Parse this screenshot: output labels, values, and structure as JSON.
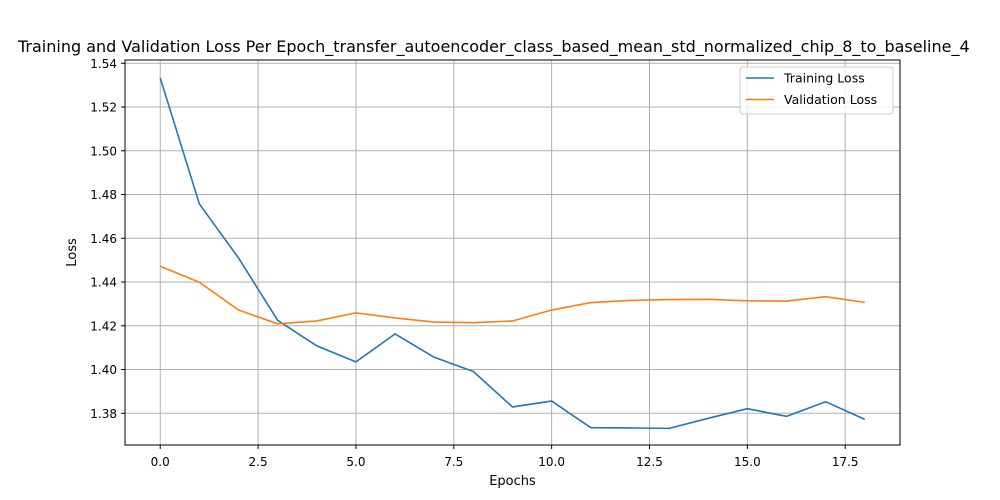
{
  "chart_data": {
    "type": "line",
    "title": "Training and Validation Loss Per Epoch_transfer_autoencoder_class_based_mean_std_normalized_chip_8_to_baseline_4",
    "xlabel": "Epochs",
    "ylabel": "Loss",
    "xlim": [
      -0.9,
      18.9
    ],
    "ylim": [
      1.3655,
      1.5415
    ],
    "xticks": [
      0.0,
      2.5,
      5.0,
      7.5,
      10.0,
      12.5,
      15.0,
      17.5
    ],
    "xtick_labels": [
      "0.0",
      "2.5",
      "5.0",
      "7.5",
      "10.0",
      "12.5",
      "15.0",
      "17.5"
    ],
    "yticks": [
      1.38,
      1.4,
      1.42,
      1.44,
      1.46,
      1.48,
      1.5,
      1.52,
      1.54
    ],
    "ytick_labels": [
      "1.38",
      "1.40",
      "1.42",
      "1.44",
      "1.46",
      "1.48",
      "1.50",
      "1.52",
      "1.54"
    ],
    "grid": true,
    "legend_position": "top-right",
    "x": [
      0,
      1,
      2,
      3,
      4,
      5,
      6,
      7,
      8,
      9,
      10,
      11,
      12,
      13,
      14,
      15,
      16,
      17,
      18
    ],
    "series": [
      {
        "name": "Training Loss",
        "color": "#1f77b4",
        "values": [
          1.5333,
          1.4757,
          1.451,
          1.4225,
          1.4108,
          1.4035,
          1.4163,
          1.4056,
          1.3991,
          1.3829,
          1.3856,
          1.3734,
          1.3733,
          1.3731,
          1.3777,
          1.3821,
          1.3786,
          1.3853,
          1.3772
        ]
      },
      {
        "name": "Validation Loss",
        "color": "#ff7f0e",
        "values": [
          1.4472,
          1.4399,
          1.4272,
          1.4209,
          1.4222,
          1.4259,
          1.4236,
          1.4217,
          1.4214,
          1.4222,
          1.4272,
          1.4306,
          1.4316,
          1.432,
          1.4321,
          1.4314,
          1.4313,
          1.4333,
          1.4307
        ]
      }
    ]
  }
}
